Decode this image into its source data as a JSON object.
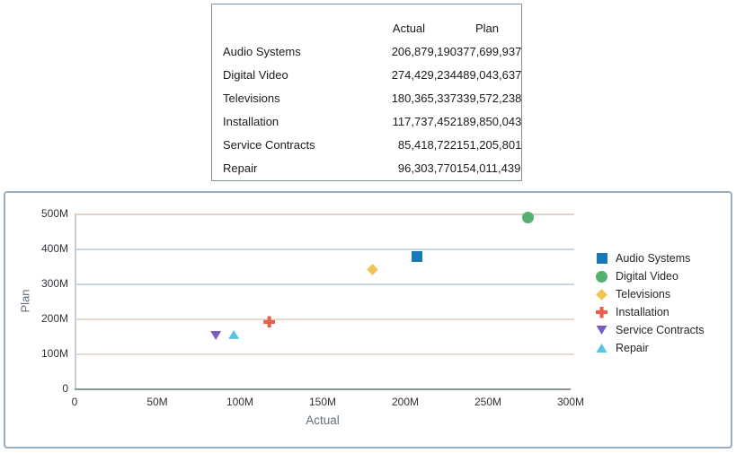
{
  "table": {
    "columns": [
      "Actual",
      "Plan"
    ],
    "rows": [
      {
        "label": "Audio Systems",
        "actual": "206,879,190",
        "plan": "377,699,937"
      },
      {
        "label": "Digital Video",
        "actual": "274,429,234",
        "plan": "489,043,637"
      },
      {
        "label": "Televisions",
        "actual": "180,365,337",
        "plan": "339,572,238"
      },
      {
        "label": "Installation",
        "actual": "117,737,452",
        "plan": "189,850,043"
      },
      {
        "label": "Service Contracts",
        "actual": "85,418,722",
        "plan": "151,205,801"
      },
      {
        "label": "Repair",
        "actual": "96,303,770",
        "plan": "154,011,439"
      }
    ]
  },
  "chart_data": {
    "type": "scatter",
    "xlabel": "Actual",
    "ylabel": "Plan",
    "xlim": [
      0,
      300000000
    ],
    "ylim": [
      0,
      500000000
    ],
    "x_ticks": [
      {
        "value": 0,
        "label": "0"
      },
      {
        "value": 50000000,
        "label": "50M"
      },
      {
        "value": 100000000,
        "label": "100M"
      },
      {
        "value": 150000000,
        "label": "150M"
      },
      {
        "value": 200000000,
        "label": "200M"
      },
      {
        "value": 250000000,
        "label": "250M"
      },
      {
        "value": 300000000,
        "label": "300M"
      }
    ],
    "y_ticks": [
      {
        "value": 0,
        "label": "0",
        "grid_color": null
      },
      {
        "value": 100000000,
        "label": "100M",
        "grid_color": "#e5dbcf"
      },
      {
        "value": 200000000,
        "label": "200M",
        "grid_color": "#e5dbcf"
      },
      {
        "value": 300000000,
        "label": "300M",
        "grid_color": "#c6d7e3"
      },
      {
        "value": 400000000,
        "label": "400M",
        "grid_color": "#c6d7e3"
      },
      {
        "value": 500000000,
        "label": "500M",
        "grid_color": "#dfd5c6"
      }
    ],
    "grid": true,
    "legend_position": "right",
    "series": [
      {
        "name": "Audio Systems",
        "marker": "square",
        "color": "#1878b8",
        "x": 206879190,
        "y": 377699937
      },
      {
        "name": "Digital Video",
        "marker": "circle",
        "color": "#57b16e",
        "x": 274429234,
        "y": 489043637
      },
      {
        "name": "Televisions",
        "marker": "diamond",
        "color": "#f0c455",
        "x": 180365337,
        "y": 339572238
      },
      {
        "name": "Installation",
        "marker": "plus",
        "color": "#e7614d",
        "x": 117737452,
        "y": 189850043
      },
      {
        "name": "Service Contracts",
        "marker": "triangle-down",
        "color": "#7a5cc5",
        "x": 85418722,
        "y": 151205801
      },
      {
        "name": "Repair",
        "marker": "triangle-up",
        "color": "#58c4e1",
        "x": 96303770,
        "y": 154011439
      }
    ]
  },
  "colors": {
    "table_border": "#7b93a9",
    "chart_border": "#97adc0",
    "y_axis_line": "#c9ced2",
    "x_axis_line": "#8a9793",
    "tick_text": "#2e3338",
    "axis_title_text": "#636d77",
    "legend_text": "#23262a"
  }
}
